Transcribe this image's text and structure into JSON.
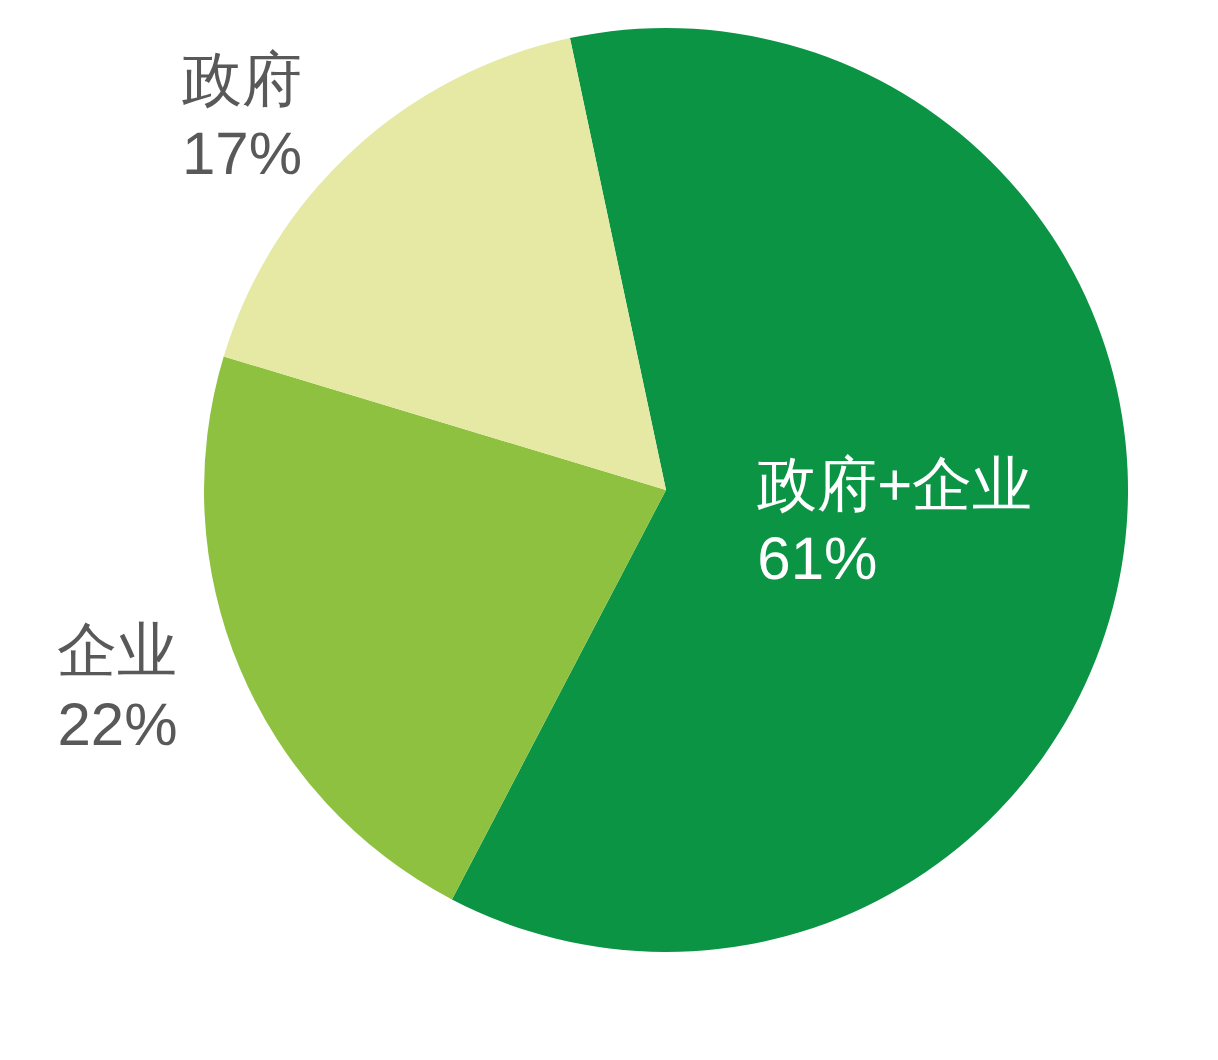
{
  "chart_data": {
    "type": "pie",
    "categories": [
      "政府+企业",
      "企业",
      "政府"
    ],
    "values": [
      61,
      22,
      17
    ],
    "colors": [
      "#0a9444",
      "#8dc13f",
      "#e5e9a3"
    ],
    "value_labels": [
      "61%",
      "22%",
      "17%"
    ]
  }
}
